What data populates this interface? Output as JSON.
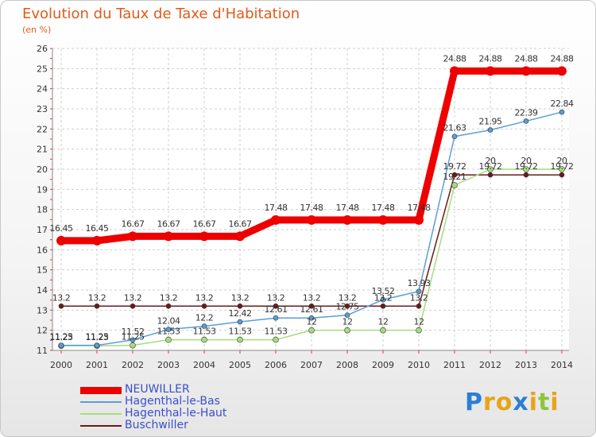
{
  "chart_data": {
    "type": "line",
    "title": "Evolution du Taux de Taxe d'Habitation",
    "subtitle": "(en %)",
    "xlabel": "",
    "ylabel": "",
    "x": [
      "2000",
      "2001",
      "2002",
      "2003",
      "2004",
      "2005",
      "2006",
      "2007",
      "2008",
      "2009",
      "2010",
      "2011",
      "2012",
      "2013",
      "2014"
    ],
    "ylim": [
      11,
      26
    ],
    "yticks": [
      "11",
      "12",
      "13",
      "14",
      "15",
      "16",
      "17",
      "18",
      "19",
      "20",
      "21",
      "22",
      "23",
      "24",
      "25",
      "26"
    ],
    "grid": true,
    "legend_position": "bottom-left",
    "series": [
      {
        "name": "NEUWILLER",
        "color": "#ee0000",
        "values": [
          16.45,
          16.45,
          16.67,
          16.67,
          16.67,
          16.67,
          17.48,
          17.48,
          17.48,
          17.48,
          17.48,
          24.88,
          24.88,
          24.88,
          24.88
        ],
        "labels": [
          "16.45",
          "16.45",
          "16.67",
          "16.67",
          "16.67",
          "16.67",
          "17.48",
          "17.48",
          "17.48",
          "17.48",
          "17.48",
          "24.88",
          "24.88",
          "24.88",
          "24.88"
        ]
      },
      {
        "name": "Hagenthal-le-Bas",
        "color": "#5a9fd4",
        "values": [
          11.25,
          11.25,
          11.52,
          12.04,
          12.2,
          12.42,
          12.61,
          12.61,
          12.75,
          13.52,
          13.93,
          21.63,
          21.95,
          22.39,
          22.84
        ],
        "labels": [
          "11.25",
          "11.25",
          "11.52",
          "12.04",
          "12.2",
          "12.42",
          "12.61",
          "12.61",
          "12.75",
          "13.52",
          "13.93",
          "21.63",
          "21.95",
          "22.39",
          "22.84"
        ]
      },
      {
        "name": "Hagenthal-le-Haut",
        "color": "#a6dc7e",
        "values": [
          11.23,
          11.23,
          11.25,
          11.53,
          11.53,
          11.53,
          11.53,
          12,
          12,
          12,
          12,
          19.21,
          20,
          20,
          20
        ],
        "labels": [
          "11.23",
          "11.23",
          "11.25",
          "11.53",
          "11.53",
          "11.53",
          "11.53",
          "12",
          "12",
          "12",
          "12",
          "19.21",
          "20",
          "20",
          "20"
        ]
      },
      {
        "name": "Buschwiller",
        "color": "#6b1a1a",
        "values": [
          13.2,
          13.2,
          13.2,
          13.2,
          13.2,
          13.2,
          13.2,
          13.2,
          13.2,
          13.2,
          13.2,
          19.72,
          19.72,
          19.72,
          19.72
        ],
        "labels": [
          "13.2",
          "13.2",
          "13.2",
          "13.2",
          "13.2",
          "13.2",
          "13.2",
          "13.2",
          "13.2",
          "13.2",
          "13.2",
          "19.72",
          "19.72",
          "19.72",
          "19.72"
        ]
      }
    ]
  },
  "logo": {
    "letters": [
      "P",
      "r",
      "o",
      "x",
      "i",
      "t",
      "i"
    ],
    "colors": [
      "#2a7fd4",
      "#e8a317",
      "#e8a317",
      "#2a7fd4",
      "#e8a317",
      "#8cc63e",
      "#e8a317"
    ]
  }
}
